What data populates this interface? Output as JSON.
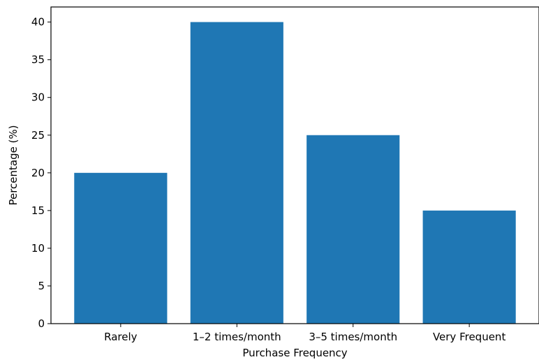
{
  "chart_data": {
    "type": "bar",
    "title": "",
    "xlabel": "Purchase Frequency",
    "ylabel": "Percentage (%)",
    "categories": [
      "Rarely",
      "1–2 times/month",
      "3–5 times/month",
      "Very Frequent"
    ],
    "values": [
      20,
      40,
      25,
      15
    ],
    "ylim": [
      0,
      42
    ],
    "yticks": [
      0,
      5,
      10,
      15,
      20,
      25,
      30,
      35,
      40
    ],
    "grid": false,
    "bar_color": "#1f77b4"
  }
}
